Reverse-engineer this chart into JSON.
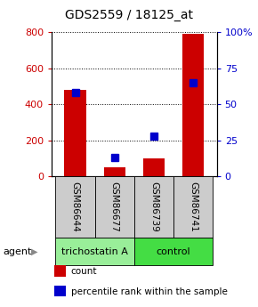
{
  "title": "GDS2559 / 18125_at",
  "samples": [
    "GSM86644",
    "GSM86677",
    "GSM86739",
    "GSM86741"
  ],
  "red_bars": [
    480,
    50,
    100,
    793
  ],
  "blue_markers_pct": [
    58,
    13,
    28,
    65
  ],
  "left_ylim": [
    0,
    800
  ],
  "right_ylim": [
    0,
    100
  ],
  "left_yticks": [
    0,
    200,
    400,
    600,
    800
  ],
  "right_yticks": [
    0,
    25,
    50,
    75,
    100
  ],
  "right_yticklabels": [
    "0",
    "25",
    "50",
    "75",
    "100%"
  ],
  "bar_color": "#cc0000",
  "marker_color": "#0000cc",
  "grid_color": "#000000",
  "left_tick_color": "#cc0000",
  "right_tick_color": "#0000cc",
  "groups": [
    {
      "label": "trichostatin A",
      "samples": [
        0,
        1
      ],
      "color": "#99ee99"
    },
    {
      "label": "control",
      "samples": [
        2,
        3
      ],
      "color": "#44dd44"
    }
  ],
  "agent_label": "agent",
  "legend_items": [
    {
      "color": "#cc0000",
      "label": "count"
    },
    {
      "color": "#0000cc",
      "label": "percentile rank within the sample"
    }
  ],
  "bar_width": 0.55,
  "marker_size": 6,
  "figsize": [
    2.9,
    3.45
  ],
  "dpi": 100
}
